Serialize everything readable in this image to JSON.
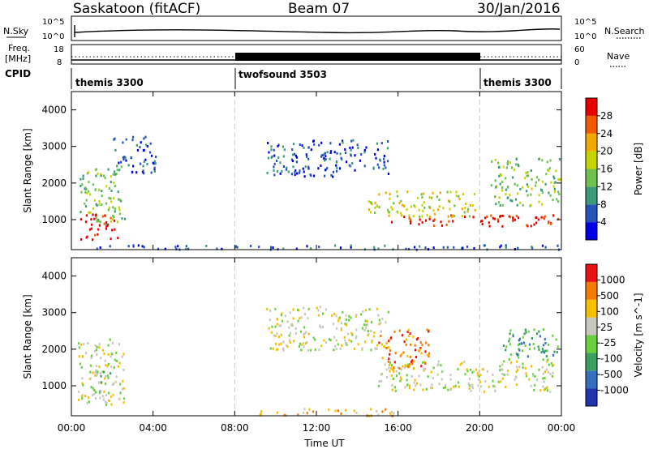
{
  "header": {
    "radar": "Saskatoon (fitACF)",
    "beam": "Beam 07",
    "date": "30/Jan/2016"
  },
  "status_panel": {
    "nsky_label": "N.Sky",
    "nsky_top_tick": "10^5",
    "nsky_bottom_tick": "10^0",
    "nsearch_top_tick": "10^5",
    "nsearch_bottom_tick": "10^0",
    "nsearch_label": "N.Search",
    "freq_label_1": "Freq.",
    "freq_label_2": "[MHz]",
    "freq_ticks": [
      "18",
      "8"
    ],
    "nave_ticks": [
      "60",
      "0"
    ],
    "nave_label": "Nave",
    "cpid_label": "CPID",
    "modes": [
      {
        "name": "themis 3300",
        "start": 0,
        "end": 8
      },
      {
        "name": "twofsound 3503",
        "start": 8,
        "end": 20
      },
      {
        "name": "themis 3300",
        "start": 20,
        "end": 24
      }
    ]
  },
  "chart_data": [
    {
      "type": "heatmap",
      "title": "",
      "parameter": "Power",
      "xlabel": "Time UT",
      "ylabel": "Slant Range [km]",
      "x_range_hours": [
        0,
        24
      ],
      "ylim": [
        180,
        4500
      ],
      "y_ticks": [
        "1000",
        "2000",
        "3000",
        "4000"
      ],
      "x_ticks": [
        "00:00",
        "04:00",
        "08:00",
        "12:00",
        "16:00",
        "20:00",
        "00:00"
      ],
      "mode_change_hours": [
        8,
        20
      ],
      "colorbar": {
        "label": "Power [dB]",
        "ticks": [
          "28",
          "24",
          "20",
          "16",
          "12",
          "8",
          "4"
        ],
        "colors": [
          "#0000e6",
          "#2554b8",
          "#3a9a7a",
          "#6dc24f",
          "#c8d400",
          "#f5a800",
          "#f05a00",
          "#e80000"
        ]
      },
      "regions": [
        {
          "t0": 0.4,
          "t1": 2.3,
          "r0": 480,
          "r1": 1200,
          "level": 7
        },
        {
          "t0": 0.4,
          "t1": 2.6,
          "r0": 900,
          "r1": 2500,
          "level": 3
        },
        {
          "t0": 2.0,
          "t1": 4.1,
          "r0": 2300,
          "r1": 3300,
          "level": 1
        },
        {
          "t0": 15.5,
          "t1": 23.9,
          "r0": 850,
          "r1": 1150,
          "level": 7
        },
        {
          "t0": 14.5,
          "t1": 19.8,
          "r0": 1100,
          "r1": 1800,
          "level": 4
        },
        {
          "t0": 9.5,
          "t1": 15.5,
          "r0": 2200,
          "r1": 3200,
          "level": 1
        },
        {
          "t0": 20.5,
          "t1": 23.9,
          "r0": 1400,
          "r1": 2700,
          "level": 3
        },
        {
          "t0": 1.0,
          "t1": 23.9,
          "r0": 200,
          "r1": 330,
          "level": 1
        }
      ]
    },
    {
      "type": "heatmap",
      "title": "",
      "parameter": "Velocity",
      "xlabel": "Time UT",
      "ylabel": "Slant Range [km]",
      "x_range_hours": [
        0,
        24
      ],
      "ylim": [
        180,
        4500
      ],
      "y_ticks": [
        "1000",
        "2000",
        "3000",
        "4000"
      ],
      "x_ticks": [
        "00:00",
        "04:00",
        "08:00",
        "12:00",
        "16:00",
        "20:00",
        "00:00"
      ],
      "mode_change_hours": [
        8,
        20
      ],
      "colorbar": {
        "label": "Velocity [m s^-1]",
        "ticks": [
          "1000",
          "500",
          "100",
          "25",
          "-25",
          "-100",
          "-500",
          "-1000"
        ],
        "colors": [
          "#2233b0",
          "#3370c0",
          "#3aa060",
          "#6ad040",
          "#c8c8c0",
          "#f5c000",
          "#f57a00",
          "#e81010"
        ]
      },
      "regions": [
        {
          "t0": 0.3,
          "t1": 2.6,
          "r0": 500,
          "r1": 2300,
          "level": 4
        },
        {
          "t0": 0.9,
          "t1": 1.9,
          "r0": 700,
          "r1": 1500,
          "level": 3
        },
        {
          "t0": 9.5,
          "t1": 15.5,
          "r0": 2000,
          "r1": 3200,
          "level": 4
        },
        {
          "t0": 15.0,
          "t1": 23.9,
          "r0": 850,
          "r1": 1700,
          "level": 4
        },
        {
          "t0": 21.0,
          "t1": 23.9,
          "r0": 1700,
          "r1": 2600,
          "level": 2
        },
        {
          "t0": 15.0,
          "t1": 17.5,
          "r0": 1500,
          "r1": 2600,
          "level": 6
        },
        {
          "t0": 9.0,
          "t1": 16.0,
          "r0": 200,
          "r1": 400,
          "level": 5
        }
      ]
    }
  ]
}
